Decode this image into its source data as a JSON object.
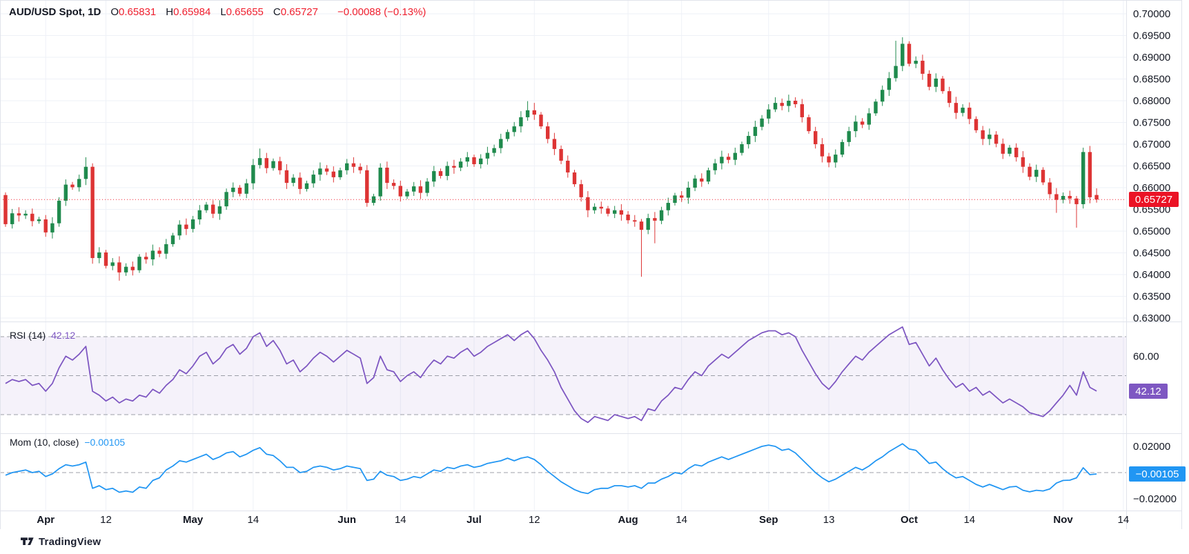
{
  "header": {
    "symbol": "AUD/USD Spot, 1D",
    "fields": [
      {
        "label": "O",
        "value": "0.65831"
      },
      {
        "label": "H",
        "value": "0.65984"
      },
      {
        "label": "L",
        "value": "0.65655"
      },
      {
        "label": "C",
        "value": "0.65727"
      }
    ],
    "change": "−0.00088 (−0.13%)"
  },
  "colors": {
    "up": "#1f8a4d",
    "down": "#dd3434",
    "accent": "#f01f2e",
    "rsi": "#7e57c2",
    "rsi_band": "rgba(126,87,194,0.08)",
    "mom": "#2196f3",
    "grid": "#eef1f7",
    "separator": "#e0e3eb",
    "dashed": "#8b8f99",
    "text": "#131722"
  },
  "price_axis": {
    "labels": [
      "0.70000",
      "0.69500",
      "0.69000",
      "0.68500",
      "0.68000",
      "0.67500",
      "0.67000",
      "0.66500",
      "0.66000",
      "0.65500",
      "0.65000",
      "0.64500",
      "0.64000",
      "0.63500",
      "0.63000"
    ],
    "last_price_label": "0.65727"
  },
  "rsi_pane": {
    "title": "RSI (14)",
    "value_label": "42.12",
    "axis_labels": [
      "60.00",
      "40.00"
    ]
  },
  "mom_pane": {
    "title": "Mom (10, close)",
    "value_label": "−0.00105",
    "axis_labels": [
      "0.02000",
      "−0.02000"
    ]
  },
  "time_axis": {
    "ticks": [
      {
        "label": "Apr",
        "index": 6,
        "major": true
      },
      {
        "label": "12",
        "index": 15,
        "major": false
      },
      {
        "label": "May",
        "index": 28,
        "major": true
      },
      {
        "label": "14",
        "index": 37,
        "major": false
      },
      {
        "label": "Jun",
        "index": 51,
        "major": true
      },
      {
        "label": "14",
        "index": 59,
        "major": false
      },
      {
        "label": "Jul",
        "index": 70,
        "major": true
      },
      {
        "label": "12",
        "index": 79,
        "major": false
      },
      {
        "label": "Aug",
        "index": 93,
        "major": true
      },
      {
        "label": "14",
        "index": 101,
        "major": false
      },
      {
        "label": "Sep",
        "index": 114,
        "major": true
      },
      {
        "label": "13",
        "index": 123,
        "major": false
      },
      {
        "label": "Oct",
        "index": 135,
        "major": true
      },
      {
        "label": "14",
        "index": 144,
        "major": false
      },
      {
        "label": "Nov",
        "index": 158,
        "major": true
      },
      {
        "label": "14",
        "index": 167,
        "major": false
      }
    ]
  },
  "footer": {
    "brand": "TradingView"
  },
  "chart_data": [
    {
      "type": "candlestick",
      "name": "AUD/USD Spot, 1D",
      "ylim": [
        0.63,
        0.7
      ],
      "axis_step": 0.005,
      "last_price": 0.65727,
      "first_open": 0.6583,
      "closes": [
        0.6516,
        0.6541,
        0.6536,
        0.654,
        0.6523,
        0.6527,
        0.6497,
        0.6518,
        0.657,
        0.6607,
        0.6601,
        0.662,
        0.6648,
        0.6438,
        0.6451,
        0.642,
        0.6428,
        0.6405,
        0.6418,
        0.641,
        0.6441,
        0.6435,
        0.6455,
        0.6448,
        0.647,
        0.649,
        0.6515,
        0.6505,
        0.6527,
        0.6548,
        0.6561,
        0.654,
        0.6557,
        0.659,
        0.66,
        0.6586,
        0.661,
        0.6652,
        0.6668,
        0.6645,
        0.6661,
        0.664,
        0.6611,
        0.6623,
        0.6597,
        0.661,
        0.663,
        0.6644,
        0.6637,
        0.6624,
        0.664,
        0.6656,
        0.6648,
        0.664,
        0.6565,
        0.658,
        0.6646,
        0.6611,
        0.6604,
        0.658,
        0.6591,
        0.6603,
        0.6588,
        0.6614,
        0.6638,
        0.6627,
        0.665,
        0.6646,
        0.666,
        0.667,
        0.6654,
        0.6667,
        0.668,
        0.6691,
        0.6712,
        0.6728,
        0.6741,
        0.6762,
        0.6778,
        0.6768,
        0.6741,
        0.6712,
        0.6689,
        0.6662,
        0.6635,
        0.6608,
        0.6578,
        0.6548,
        0.6556,
        0.6552,
        0.654,
        0.6548,
        0.6538,
        0.6525,
        0.6522,
        0.6503,
        0.653,
        0.6524,
        0.6548,
        0.6565,
        0.6582,
        0.6577,
        0.66,
        0.6621,
        0.6614,
        0.664,
        0.6656,
        0.6671,
        0.6664,
        0.668,
        0.67,
        0.6719,
        0.674,
        0.6759,
        0.678,
        0.6795,
        0.6788,
        0.68,
        0.6792,
        0.6762,
        0.673,
        0.67,
        0.6672,
        0.6658,
        0.6676,
        0.6705,
        0.673,
        0.6752,
        0.6745,
        0.6771,
        0.6798,
        0.6825,
        0.6852,
        0.688,
        0.6931,
        0.6885,
        0.6892,
        0.6862,
        0.6832,
        0.6851,
        0.6822,
        0.6795,
        0.6772,
        0.6784,
        0.6758,
        0.6732,
        0.6712,
        0.6722,
        0.6701,
        0.6678,
        0.6692,
        0.667,
        0.6648,
        0.6625,
        0.6641,
        0.6612,
        0.6585,
        0.6572,
        0.6581,
        0.6575,
        0.6562,
        0.6682,
        0.6578,
        0.65727
      ],
      "wick_highs": {
        "12": 0.667,
        "38": 0.669,
        "78": 0.6799,
        "79": 0.6795,
        "115": 0.6808,
        "133": 0.6938,
        "134": 0.6946,
        "161": 0.6692
      },
      "wick_lows": {
        "13": 0.6425,
        "17": 0.6386,
        "54": 0.6556,
        "87": 0.6532,
        "95": 0.6395,
        "97": 0.6472,
        "123": 0.6647,
        "146": 0.6698,
        "157": 0.6542,
        "160": 0.6508
      },
      "last_candle": {
        "open": 0.65831,
        "high": 0.65984,
        "low": 0.65655,
        "close": 0.65727
      }
    },
    {
      "type": "line",
      "name": "RSI (14)",
      "last_value": 42.12,
      "levels": [
        70,
        50,
        30
      ],
      "band": [
        30,
        70
      ],
      "axis_ticks": [
        60,
        40
      ],
      "values": [
        46,
        48,
        47,
        48,
        45,
        46,
        42,
        46,
        54,
        60,
        58,
        61,
        65,
        42,
        40,
        37,
        39,
        36,
        38,
        37,
        40,
        39,
        43,
        41,
        45,
        48,
        53,
        51,
        55,
        60,
        62,
        56,
        59,
        64,
        66,
        61,
        64,
        70,
        72,
        65,
        68,
        63,
        56,
        58,
        52,
        55,
        59,
        62,
        60,
        57,
        60,
        63,
        61,
        59,
        46,
        49,
        60,
        53,
        52,
        47,
        50,
        52,
        49,
        54,
        58,
        56,
        60,
        59,
        62,
        64,
        60,
        62,
        65,
        67,
        69,
        71,
        68,
        71,
        73,
        69,
        63,
        58,
        52,
        44,
        38,
        32,
        28,
        26,
        29,
        28,
        27,
        30,
        29,
        28,
        29,
        27,
        33,
        32,
        37,
        40,
        44,
        43,
        48,
        52,
        50,
        55,
        58,
        61,
        59,
        62,
        65,
        68,
        70,
        72,
        73,
        73,
        71,
        72,
        70,
        63,
        57,
        51,
        46,
        43,
        47,
        52,
        56,
        60,
        58,
        62,
        65,
        68,
        71,
        73,
        75,
        66,
        67,
        61,
        55,
        59,
        53,
        48,
        44,
        46,
        42,
        44,
        40,
        42,
        39,
        36,
        38,
        36,
        34,
        31,
        30,
        29,
        32,
        36,
        40,
        45,
        40,
        52,
        44,
        42.12
      ]
    },
    {
      "type": "line",
      "name": "Mom (10, close)",
      "last_value": -0.00105,
      "zero_line": 0,
      "axis_ticks": [
        0.02,
        -0.02
      ],
      "values": [
        -0.002,
        0.0,
        0.001,
        0.002,
        0.0,
        0.001,
        -0.003,
        -0.001,
        0.003,
        0.006,
        0.005,
        0.006,
        0.008,
        -0.012,
        -0.01,
        -0.013,
        -0.012,
        -0.015,
        -0.014,
        -0.015,
        -0.011,
        -0.012,
        -0.006,
        -0.004,
        0.002,
        0.005,
        0.009,
        0.008,
        0.01,
        0.012,
        0.014,
        0.01,
        0.012,
        0.015,
        0.016,
        0.012,
        0.014,
        0.017,
        0.019,
        0.014,
        0.013,
        0.009,
        0.004,
        0.004,
        0.0,
        0.001,
        0.004,
        0.005,
        0.004,
        0.002,
        0.003,
        0.005,
        0.004,
        0.003,
        -0.006,
        -0.005,
        0.001,
        -0.002,
        -0.003,
        -0.006,
        -0.005,
        -0.003,
        -0.004,
        -0.001,
        0.002,
        0.001,
        0.004,
        0.003,
        0.005,
        0.006,
        0.004,
        0.005,
        0.007,
        0.008,
        0.009,
        0.011,
        0.009,
        0.011,
        0.012,
        0.01,
        0.006,
        0.001,
        -0.003,
        -0.007,
        -0.01,
        -0.013,
        -0.015,
        -0.016,
        -0.013,
        -0.012,
        -0.012,
        -0.01,
        -0.01,
        -0.011,
        -0.01,
        -0.012,
        -0.008,
        -0.008,
        -0.005,
        -0.003,
        0.0,
        -0.001,
        0.003,
        0.006,
        0.005,
        0.008,
        0.01,
        0.012,
        0.01,
        0.012,
        0.014,
        0.016,
        0.018,
        0.02,
        0.021,
        0.02,
        0.017,
        0.018,
        0.015,
        0.01,
        0.005,
        0.0,
        -0.004,
        -0.007,
        -0.005,
        -0.002,
        0.001,
        0.004,
        0.002,
        0.005,
        0.009,
        0.012,
        0.016,
        0.019,
        0.022,
        0.018,
        0.017,
        0.012,
        0.007,
        0.008,
        0.003,
        -0.001,
        -0.004,
        -0.003,
        -0.006,
        -0.009,
        -0.011,
        -0.009,
        -0.011,
        -0.013,
        -0.011,
        -0.0105,
        -0.0135,
        -0.0147,
        -0.0135,
        -0.014,
        -0.0125,
        -0.008,
        -0.006,
        -0.0058,
        -0.004,
        0.0037,
        -0.0016,
        -0.00105
      ]
    }
  ]
}
